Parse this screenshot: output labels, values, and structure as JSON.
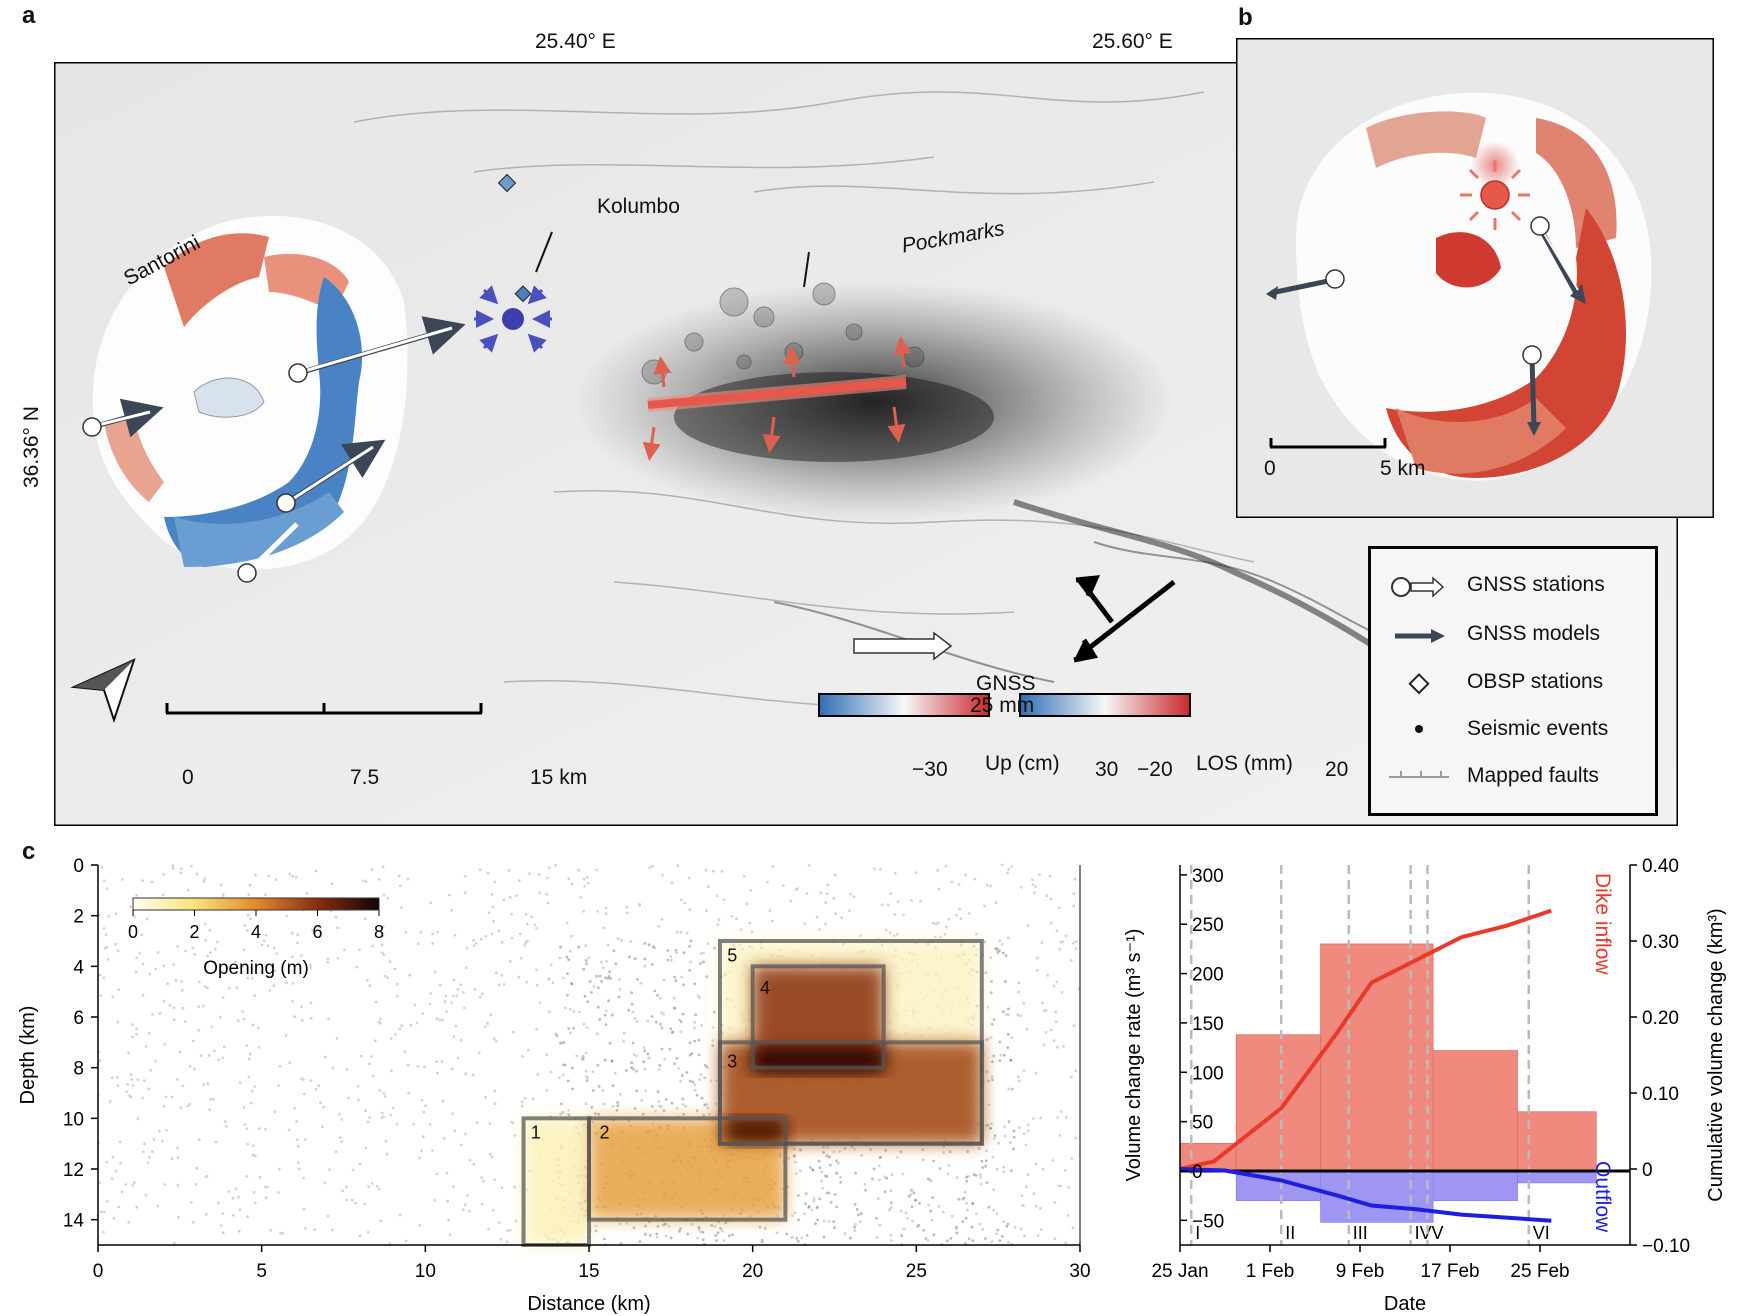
{
  "figure": {
    "panel_a": {
      "letter": "a",
      "lon_labels": [
        "25.40° E",
        "25.60° E"
      ],
      "lat_label": "36.36° N",
      "place_labels": {
        "santorini": "Santorini",
        "kolumbo": "Kolumbo",
        "pockmarks": "Pockmarks"
      },
      "scalebar": {
        "labels": [
          "0",
          "7.5",
          "15 km"
        ]
      },
      "gnss_scale": {
        "line1": "GNSS",
        "line2": "25 mm"
      },
      "colorbar_up": {
        "label": "Up (cm)",
        "min": "−30",
        "max": "30"
      },
      "colorbar_los": {
        "label": "LOS (mm)",
        "min": "−20",
        "max": "20"
      },
      "legend": [
        {
          "label": "GNSS stations",
          "icon": "gnss-station-icon"
        },
        {
          "label": "GNSS models",
          "icon": "gnss-model-arrow-icon"
        },
        {
          "label": "OBSP stations",
          "icon": "diamond-icon"
        },
        {
          "label": "Seismic events",
          "icon": "dot-icon"
        },
        {
          "label": "Mapped faults",
          "icon": "fault-line-icon"
        }
      ],
      "colors": {
        "uplift": "#d63a32",
        "subsidence": "#3d73b8",
        "dike": "#e8584a",
        "kolumbo_source": "#3b3fb0"
      }
    },
    "panel_b": {
      "letter": "b",
      "scalebar": {
        "labels": [
          "0",
          "5 km"
        ]
      }
    },
    "panel_c": {
      "letter": "c",
      "colorbar": {
        "label": "Opening (m)",
        "ticks": [
          "0",
          "2",
          "4",
          "6",
          "8"
        ]
      },
      "patch_labels": [
        "1",
        "2",
        "3",
        "4",
        "5"
      ]
    }
  },
  "chart_data": [
    {
      "type": "heatmap",
      "xlabel": "Distance (km)",
      "ylabel": "Depth (km)",
      "xlim": [
        0,
        30
      ],
      "ylim": [
        15,
        0
      ],
      "xticks": [
        0,
        5,
        10,
        15,
        20,
        25,
        30
      ],
      "yticks": [
        0,
        2,
        4,
        6,
        8,
        10,
        12,
        14
      ],
      "patches": [
        {
          "id": "1",
          "x": [
            13,
            15
          ],
          "depth": [
            10,
            15
          ],
          "opening_m": 1.0
        },
        {
          "id": "2",
          "x": [
            15,
            21
          ],
          "depth": [
            10,
            14
          ],
          "opening_m": 3.5
        },
        {
          "id": "3",
          "x": [
            19,
            27
          ],
          "depth": [
            7,
            11
          ],
          "opening_m": 5.5
        },
        {
          "id": "4",
          "x": [
            20,
            24
          ],
          "depth": [
            4,
            8
          ],
          "opening_m": 6.0
        },
        {
          "id": "5",
          "x": [
            19,
            27
          ],
          "depth": [
            3,
            11
          ],
          "opening_m": 0.8
        }
      ]
    },
    {
      "type": "bar",
      "xlabel": "Date",
      "ylabel": "Volume change rate (m³ s⁻¹)",
      "y2label": "Cumulative volume change (km³)",
      "xticks": [
        "25 Jan",
        "1 Feb",
        "9 Feb",
        "17 Feb",
        "25 Feb"
      ],
      "ylim": [
        -75,
        310
      ],
      "y2lim": [
        -0.1,
        0.4
      ],
      "yticks": [
        -50,
        0,
        50,
        100,
        150,
        200,
        250,
        300
      ],
      "y2ticks": [
        "−0.10",
        "0",
        "0.10",
        "0.20",
        "0.30",
        "0.40"
      ],
      "yticks_display": [
        "−50",
        "0",
        "50",
        "100",
        "150",
        "200",
        "250",
        "300"
      ],
      "phases": [
        {
          "label": "I",
          "day": 1
        },
        {
          "label": "II",
          "day": 9
        },
        {
          "label": "III",
          "day": 15
        },
        {
          "label": "IV",
          "day": 20.5
        },
        {
          "label": "V",
          "day": 22
        },
        {
          "label": "VI",
          "day": 31
        }
      ],
      "series": [
        {
          "name": "Dike inflow",
          "bars": [
            {
              "start_day": 0,
              "end_day": 5,
              "value": 28
            },
            {
              "start_day": 5,
              "end_day": 12.5,
              "value": 138
            },
            {
              "start_day": 12.5,
              "end_day": 22.5,
              "value": 230
            },
            {
              "start_day": 22.5,
              "end_day": 30,
              "value": 122
            },
            {
              "start_day": 30,
              "end_day": 37,
              "value": 60
            }
          ],
          "cumulative": [
            [
              0,
              0
            ],
            [
              3,
              0.01
            ],
            [
              9,
              0.08
            ],
            [
              14,
              0.18
            ],
            [
              17,
              0.245
            ],
            [
              21,
              0.275
            ],
            [
              25,
              0.305
            ],
            [
              29,
              0.32
            ],
            [
              33,
              0.34
            ]
          ]
        },
        {
          "name": "Outflow",
          "bars": [
            {
              "start_day": 5,
              "end_day": 12.5,
              "value": -30
            },
            {
              "start_day": 12.5,
              "end_day": 22.5,
              "value": -52
            },
            {
              "start_day": 22.5,
              "end_day": 30,
              "value": -30
            },
            {
              "start_day": 30,
              "end_day": 37,
              "value": -12
            }
          ],
          "cumulative": [
            [
              0,
              0
            ],
            [
              4,
              -0.002
            ],
            [
              9,
              -0.015
            ],
            [
              14,
              -0.035
            ],
            [
              17,
              -0.048
            ],
            [
              21,
              -0.053
            ],
            [
              25,
              -0.06
            ],
            [
              29,
              -0.064
            ],
            [
              33,
              -0.068
            ]
          ]
        }
      ]
    }
  ]
}
